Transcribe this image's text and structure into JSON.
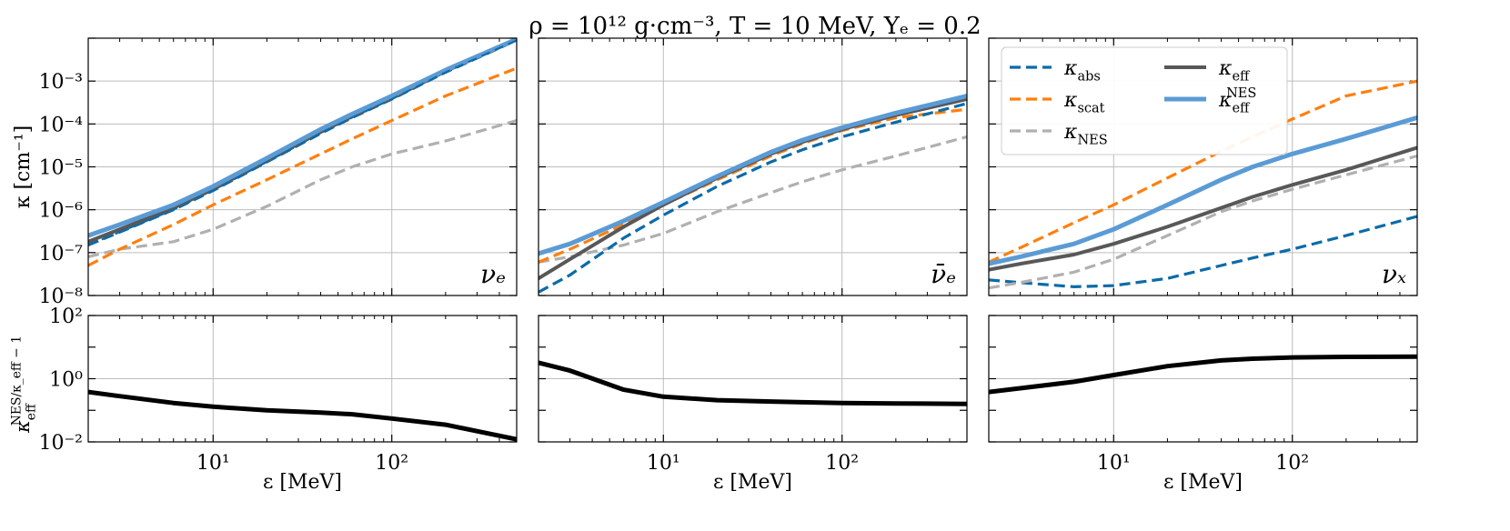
{
  "figure": {
    "title": "ρ = 10¹² g·cm⁻³,  T = 10 MeV,  Yₑ = 0.2"
  },
  "legend": {
    "items": [
      {
        "key": "abs",
        "label": "κ_abs",
        "color": "#0b6ba8",
        "dash": true
      },
      {
        "key": "scat",
        "label": "κ_scat",
        "color": "#ff7f0e",
        "dash": true
      },
      {
        "key": "nes",
        "label": "κ_NES",
        "color": "#b0b0b0",
        "dash": true
      },
      {
        "key": "eff",
        "label": "κ_eff",
        "color": "#585858",
        "dash": false
      },
      {
        "key": "effnes",
        "label": "κ_eff^NES",
        "color": "#5b9bd5",
        "dash": false
      }
    ]
  },
  "colors": {
    "abs": "#0b6ba8",
    "scat": "#ff7f0e",
    "nes": "#b0b0b0",
    "eff": "#585858",
    "effnes": "#5b9bd5",
    "ratio": "#000000",
    "grid": "#bdbdbd"
  },
  "chart_data": [
    {
      "type": "line",
      "panel": "top-1",
      "species_label": "νₑ",
      "ylabel": "κ [cm⁻¹]",
      "xlabel": "",
      "xscale": "log",
      "yscale": "log",
      "xlim": [
        2,
        500
      ],
      "ylim": [
        1e-08,
        0.01
      ],
      "x": [
        2,
        3,
        6,
        10,
        20,
        40,
        60,
        100,
        200,
        500
      ],
      "series": [
        {
          "key": "nes",
          "name": "κ_NES",
          "values": [
            8e-08,
            1.2e-07,
            1.8e-07,
            3.5e-07,
            1.2e-06,
            5e-06,
            1e-05,
            2e-05,
            4e-05,
            0.00012
          ]
        },
        {
          "key": "scat",
          "name": "κ_scat",
          "values": [
            5e-08,
            1.2e-07,
            4.5e-07,
            1.3e-06,
            5e-06,
            2e-05,
            4.5e-05,
            0.00012,
            0.00045,
            0.002
          ]
        },
        {
          "key": "abs",
          "name": "κ_abs",
          "values": [
            1.5e-07,
            3e-07,
            1e-06,
            2.8e-06,
            1.3e-05,
            6e-05,
            0.00014,
            0.00038,
            0.0016,
            0.009
          ]
        },
        {
          "key": "eff",
          "name": "κ_eff",
          "values": [
            1.8e-07,
            3.5e-07,
            1.1e-06,
            3e-06,
            1.4e-05,
            6.5e-05,
            0.00015,
            0.0004,
            0.0017,
            0.0092
          ]
        },
        {
          "key": "effnes",
          "name": "κ_eff^NES",
          "values": [
            2.5e-07,
            4.5e-07,
            1.3e-06,
            3.5e-06,
            1.6e-05,
            7.5e-05,
            0.00017,
            0.00045,
            0.0018,
            0.0095
          ]
        }
      ]
    },
    {
      "type": "line",
      "panel": "top-2",
      "species_label": "ν̄ₑ",
      "xlabel": "",
      "ylabel": "",
      "xscale": "log",
      "yscale": "log",
      "xlim": [
        2,
        500
      ],
      "ylim": [
        1e-08,
        0.01
      ],
      "x": [
        2,
        3,
        6,
        10,
        20,
        40,
        60,
        100,
        200,
        500
      ],
      "series": [
        {
          "key": "nes",
          "name": "κ_NES",
          "values": [
            6e-08,
            8e-08,
            1.5e-07,
            2.8e-07,
            9e-07,
            2.5e-06,
            4.5e-06,
            8.5e-06,
            1.8e-05,
            5e-05
          ]
        },
        {
          "key": "scat",
          "name": "κ_scat",
          "values": [
            6e-08,
            1.2e-07,
            4.5e-07,
            1.3e-06,
            5e-06,
            1.8e-05,
            3.5e-05,
            7e-05,
            0.00014,
            0.00022
          ]
        },
        {
          "key": "abs",
          "name": "κ_abs",
          "values": [
            1.2e-08,
            3e-08,
            2.2e-07,
            7.5e-07,
            3.5e-06,
            1.3e-05,
            2.5e-05,
            5e-05,
            0.00011,
            0.0003
          ]
        },
        {
          "key": "eff",
          "name": "κ_eff",
          "values": [
            2.5e-08,
            7e-08,
            4e-07,
            1.3e-06,
            5.5e-06,
            2e-05,
            3.8e-05,
            7.5e-05,
            0.00016,
            0.00038
          ]
        },
        {
          "key": "effnes",
          "name": "κ_eff^NES",
          "values": [
            9.5e-08,
            1.6e-07,
            5.5e-07,
            1.5e-06,
            6e-06,
            2.2e-05,
            4.2e-05,
            8.2e-05,
            0.00018,
            0.00045
          ]
        }
      ]
    },
    {
      "type": "line",
      "panel": "top-3",
      "species_label": "νₓ",
      "xlabel": "",
      "ylabel": "",
      "xscale": "log",
      "yscale": "log",
      "xlim": [
        2,
        500
      ],
      "ylim": [
        1e-08,
        0.01
      ],
      "x": [
        2,
        3,
        6,
        10,
        20,
        40,
        60,
        100,
        200,
        500
      ],
      "series": [
        {
          "key": "abs",
          "name": "κ_abs",
          "values": [
            2.3e-08,
            2e-08,
            1.6e-08,
            1.7e-08,
            2.5e-08,
            5e-08,
            7.5e-08,
            1.2e-07,
            2.5e-07,
            7e-07
          ]
        },
        {
          "key": "scat",
          "name": "κ_scat",
          "values": [
            6e-08,
            1.3e-07,
            5e-07,
            1.3e-06,
            5.5e-06,
            2.3e-05,
            5e-05,
            0.00013,
            0.00045,
            0.001
          ]
        },
        {
          "key": "nes",
          "name": "κ_NES",
          "values": [
            1.5e-08,
            2e-08,
            3.5e-08,
            7e-08,
            2.5e-07,
            9e-07,
            1.6e-06,
            3e-06,
            6.5e-06,
            1.8e-05
          ]
        },
        {
          "key": "eff",
          "name": "κ_eff",
          "values": [
            4e-08,
            5.5e-08,
            9e-08,
            1.6e-07,
            4e-07,
            1.1e-06,
            2e-06,
            3.8e-06,
            8.5e-06,
            2.8e-05
          ]
        },
        {
          "key": "effnes",
          "name": "κ_eff^NES",
          "values": [
            5.5e-08,
            8e-08,
            1.6e-07,
            3.5e-07,
            1.3e-06,
            5e-06,
            1e-05,
            2e-05,
            4.5e-05,
            0.00014
          ]
        }
      ]
    },
    {
      "type": "line",
      "panel": "bottom-1",
      "ylabel": "κ_eff^NES/κ_eff − 1",
      "xlabel": "ε [MeV]",
      "xscale": "log",
      "yscale": "log",
      "xlim": [
        2,
        500
      ],
      "ylim": [
        0.01,
        100
      ],
      "x": [
        2,
        3,
        6,
        10,
        20,
        40,
        60,
        100,
        200,
        500
      ],
      "series": [
        {
          "key": "ratio",
          "name": "ratio",
          "values": [
            0.38,
            0.28,
            0.17,
            0.13,
            0.1,
            0.085,
            0.075,
            0.055,
            0.035,
            0.012
          ]
        }
      ]
    },
    {
      "type": "line",
      "panel": "bottom-2",
      "xlabel": "ε [MeV]",
      "ylabel": "",
      "xscale": "log",
      "yscale": "log",
      "xlim": [
        2,
        500
      ],
      "ylim": [
        0.01,
        100
      ],
      "x": [
        2,
        3,
        6,
        10,
        20,
        40,
        60,
        100,
        200,
        500
      ],
      "series": [
        {
          "key": "ratio",
          "name": "ratio",
          "values": [
            3.2,
            1.8,
            0.45,
            0.27,
            0.21,
            0.19,
            0.18,
            0.17,
            0.165,
            0.16
          ]
        }
      ]
    },
    {
      "type": "line",
      "panel": "bottom-3",
      "xlabel": "ε [MeV]",
      "ylabel": "",
      "xscale": "log",
      "yscale": "log",
      "xlim": [
        2,
        500
      ],
      "ylim": [
        0.01,
        100
      ],
      "x": [
        2,
        3,
        6,
        10,
        20,
        40,
        60,
        100,
        200,
        500
      ],
      "series": [
        {
          "key": "ratio",
          "name": "ratio",
          "values": [
            0.38,
            0.5,
            0.8,
            1.3,
            2.5,
            3.8,
            4.3,
            4.7,
            4.9,
            5.0
          ]
        }
      ]
    }
  ],
  "tick_labels": {
    "x": [
      {
        "v": 10,
        "label": "10¹"
      },
      {
        "v": 100,
        "label": "10²"
      }
    ],
    "y_top": [
      {
        "v": 1e-08,
        "label": "10⁻⁸"
      },
      {
        "v": 1e-07,
        "label": "10⁻⁷"
      },
      {
        "v": 1e-06,
        "label": "10⁻⁶"
      },
      {
        "v": 1e-05,
        "label": "10⁻⁵"
      },
      {
        "v": 0.0001,
        "label": "10⁻⁴"
      },
      {
        "v": 0.001,
        "label": "10⁻³"
      }
    ],
    "y_bottom": [
      {
        "v": 0.01,
        "label": "10⁻²"
      },
      {
        "v": 1,
        "label": "10⁰"
      },
      {
        "v": 100,
        "label": "10²"
      }
    ]
  }
}
